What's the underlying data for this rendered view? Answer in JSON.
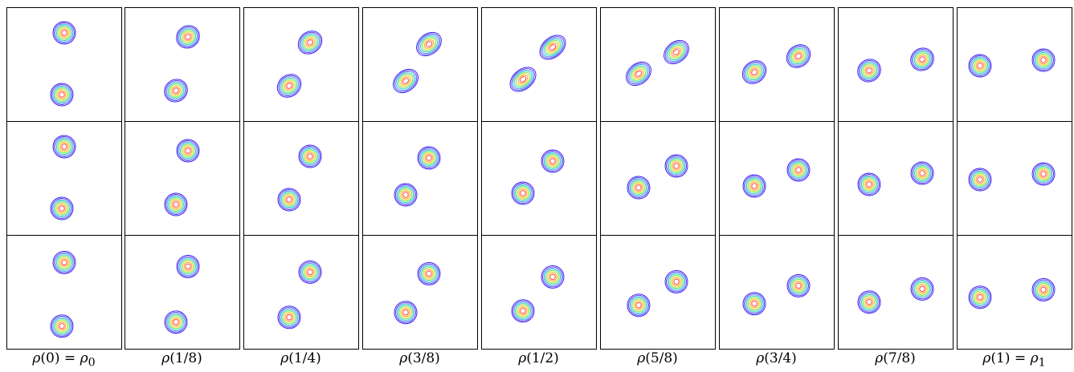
{
  "captions": [
    {
      "rho": "ρ",
      "arg": "(0) = ",
      "rho2": "ρ",
      "sub": "0"
    },
    {
      "rho": "ρ",
      "arg": "(1/8)",
      "rho2": "",
      "sub": ""
    },
    {
      "rho": "ρ",
      "arg": "(1/4)",
      "rho2": "",
      "sub": ""
    },
    {
      "rho": "ρ",
      "arg": "(3/8)",
      "rho2": "",
      "sub": ""
    },
    {
      "rho": "ρ",
      "arg": "(1/2)",
      "rho2": "",
      "sub": ""
    },
    {
      "rho": "ρ",
      "arg": "(5/8)",
      "rho2": "",
      "sub": ""
    },
    {
      "rho": "ρ",
      "arg": "(3/4)",
      "rho2": "",
      "sub": ""
    },
    {
      "rho": "ρ",
      "arg": "(7/8)",
      "rho2": "",
      "sub": ""
    },
    {
      "rho": "ρ",
      "arg": "(1) = ",
      "rho2": "ρ",
      "sub": "1"
    }
  ],
  "contour_colors": [
    "#1a1aff",
    "#7a2bd8",
    "#3aa0ff",
    "#2ed4c0",
    "#7fe05a",
    "#e6e03a",
    "#ff9a2a",
    "#ff3030"
  ]
}
